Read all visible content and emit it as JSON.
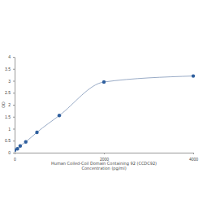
{
  "chart_data": {
    "type": "line",
    "title": "Human Coiled-Coil Domain Containing 92 (CCDC92)",
    "x_label": "Concentration (pg/ml)",
    "y_label": "OD",
    "x": [
      0,
      62.5,
      125,
      250,
      500,
      1000,
      2000,
      4000
    ],
    "series": [
      {
        "name": "OD",
        "color": "#2f5f9e",
        "marker": "circle",
        "values": [
          0.1,
          0.16,
          0.28,
          0.45,
          0.85,
          1.55,
          2.95,
          3.2
        ]
      }
    ],
    "xlim": [
      0,
      4000
    ],
    "xticks": [
      0,
      2000,
      4000
    ],
    "ylim": [
      0,
      4
    ],
    "yticks": [
      0,
      0.5,
      1,
      1.5,
      2,
      2.5,
      3,
      3.5,
      4
    ],
    "grid": false
  }
}
